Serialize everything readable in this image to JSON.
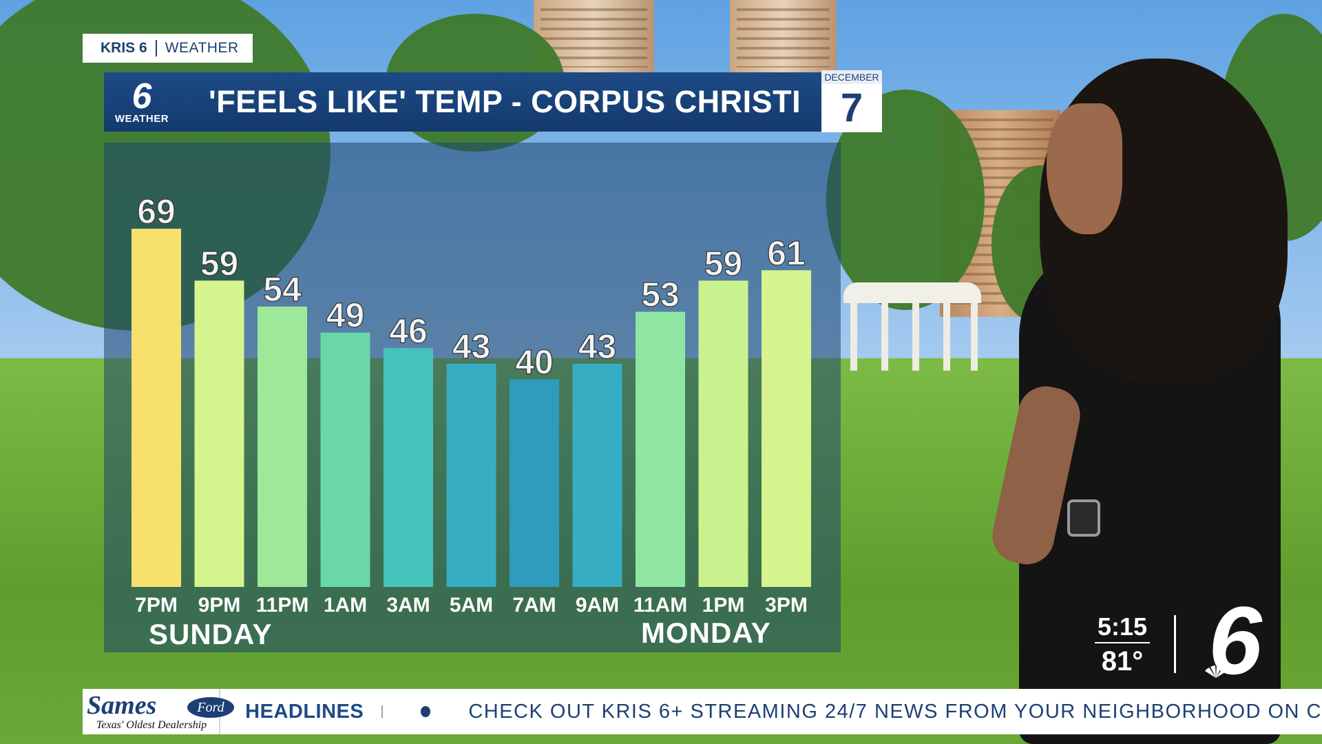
{
  "brand_tag": {
    "station": "KRIS 6",
    "section": "WEATHER"
  },
  "logo": {
    "number": "6",
    "label": "WEATHER"
  },
  "title": "'FEELS LIKE' TEMP  - CORPUS CHRISTI",
  "date": {
    "month": "DECEMBER",
    "day": "7"
  },
  "chart_data": {
    "type": "bar",
    "title": "'FEELS LIKE' TEMP  - CORPUS CHRISTI",
    "categories": [
      "7PM",
      "9PM",
      "11PM",
      "1AM",
      "3AM",
      "5AM",
      "7AM",
      "9AM",
      "11AM",
      "1PM",
      "3PM"
    ],
    "values": [
      69,
      59,
      54,
      49,
      46,
      43,
      40,
      43,
      53,
      59,
      61
    ],
    "bar_colors": [
      "#f7e06c",
      "#d6f48e",
      "#9ee89a",
      "#6ad7a8",
      "#46c3bd",
      "#36adc2",
      "#2f9bbd",
      "#36adc2",
      "#8fe5a2",
      "#c9f28e",
      "#d6f48e"
    ],
    "day_labels": [
      "SUNDAY",
      "MONDAY"
    ],
    "ylim": [
      0,
      69
    ],
    "grid": false
  },
  "bug": {
    "time": "5:15",
    "temp": "81°",
    "logo": "6"
  },
  "ticker": {
    "sponsor": "Sames",
    "sponsor_badge": "Ford",
    "sponsor_tagline": "Texas' Oldest Dealership",
    "heading": "HEADLINES",
    "crawl": "CHECK OUT KRIS 6+ STREAMING 24/7 NEWS FROM YOUR NEIGHBORHOOD ON C"
  }
}
